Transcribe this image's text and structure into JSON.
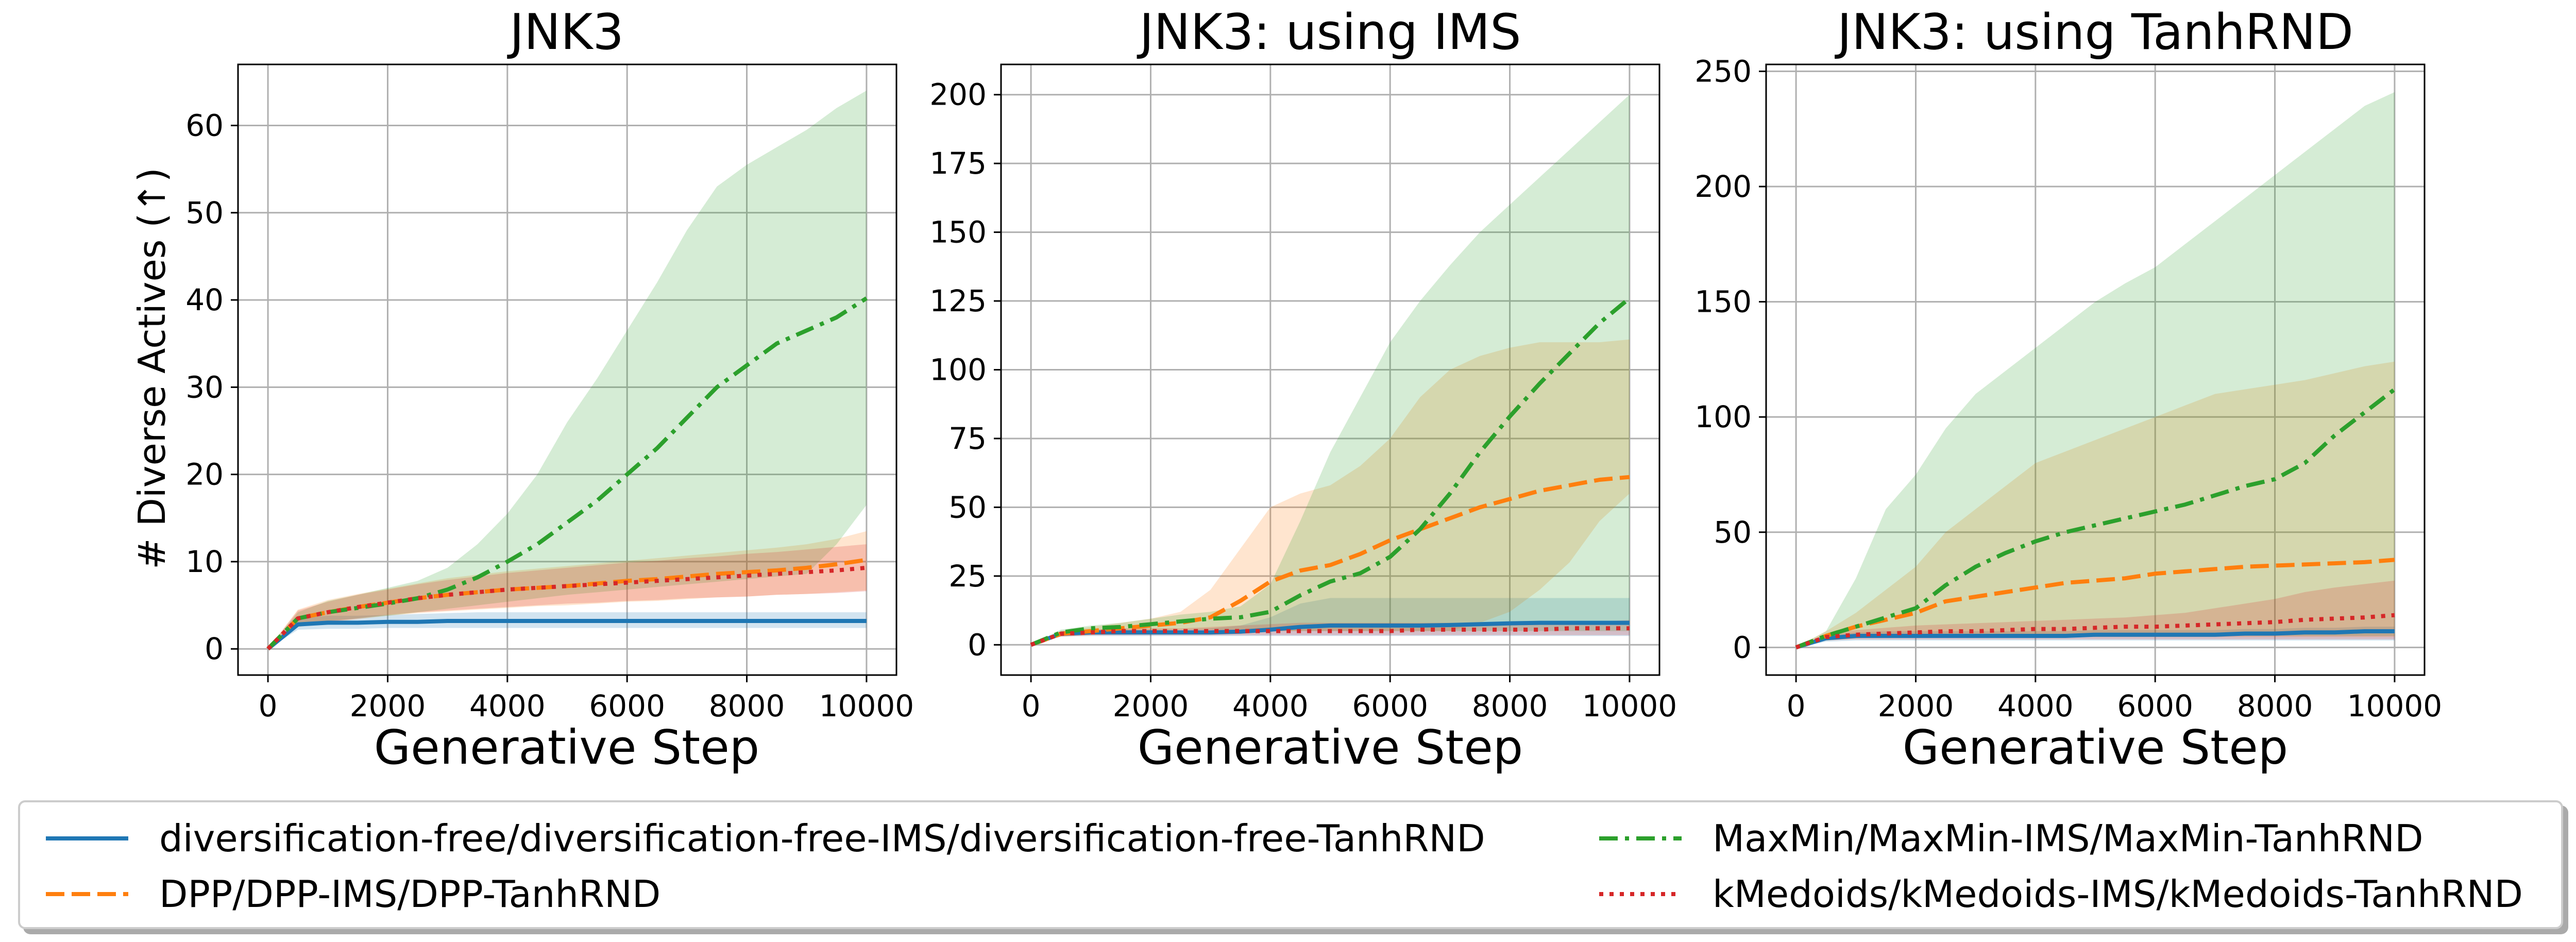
{
  "colors": {
    "blue": "#1f77b4",
    "orange": "#ff7f0e",
    "green": "#2ca02c",
    "red": "#d62728",
    "grid": "#b0b0b0"
  },
  "legend": {
    "items": [
      {
        "label": "diversification-free/diversification-free-IMS/diversification-free-TanhRND",
        "color": "#1f77b4",
        "dash": "solid"
      },
      {
        "label": "DPP/DPP-IMS/DPP-TanhRND",
        "color": "#ff7f0e",
        "dash": "dashed"
      },
      {
        "label": "MaxMin/MaxMin-IMS/MaxMin-TanhRND",
        "color": "#2ca02c",
        "dash": "dashdot"
      },
      {
        "label": "kMedoids/kMedoids-IMS/kMedoids-TanhRND",
        "color": "#d62728",
        "dash": "dotted"
      }
    ]
  },
  "chart_data": [
    {
      "type": "line",
      "title": "JNK3",
      "xlabel": "Generative Step",
      "ylabel": "# Diverse Actives (↑)",
      "xlim": [
        -500,
        10500
      ],
      "ylim": [
        -3,
        67
      ],
      "xticks": [
        0,
        2000,
        4000,
        6000,
        8000,
        10000
      ],
      "yticks": [
        0,
        10,
        20,
        30,
        40,
        50,
        60
      ],
      "grid": true,
      "x": [
        0,
        500,
        1000,
        1500,
        2000,
        2500,
        3000,
        3500,
        4000,
        4500,
        5000,
        5500,
        6000,
        6500,
        7000,
        7500,
        8000,
        8500,
        9000,
        9500,
        10000
      ],
      "series": [
        {
          "name": "diversification-free",
          "color": "#1f77b4",
          "dash": "solid",
          "values": [
            0,
            2.8,
            3,
            3,
            3.1,
            3.1,
            3.2,
            3.2,
            3.2,
            3.2,
            3.2,
            3.2,
            3.2,
            3.2,
            3.2,
            3.2,
            3.2,
            3.2,
            3.2,
            3.2,
            3.2
          ],
          "lower": [
            0,
            2.2,
            2.3,
            2.3,
            2.4,
            2.4,
            2.4,
            2.4,
            2.4,
            2.4,
            2.4,
            2.4,
            2.4,
            2.4,
            2.4,
            2.4,
            2.4,
            2.4,
            2.4,
            2.4,
            2.4
          ],
          "upper": [
            0,
            3.5,
            3.8,
            3.8,
            3.9,
            4,
            4.1,
            4.2,
            4.2,
            4.2,
            4.2,
            4.2,
            4.2,
            4.2,
            4.2,
            4.2,
            4.2,
            4.2,
            4.2,
            4.2,
            4.2
          ]
        },
        {
          "name": "DPP",
          "color": "#ff7f0e",
          "dash": "dashed",
          "values": [
            0,
            3.5,
            4.2,
            4.8,
            5.3,
            5.8,
            6.2,
            6.5,
            6.8,
            7,
            7.2,
            7.5,
            7.8,
            8,
            8.3,
            8.6,
            8.8,
            9,
            9.3,
            9.7,
            10.2
          ],
          "lower": [
            0,
            2.5,
            3,
            3.4,
            3.8,
            4.1,
            4.3,
            4.5,
            4.7,
            4.9,
            5,
            5.2,
            5.4,
            5.5,
            5.7,
            5.9,
            6,
            6.2,
            6.3,
            6.5,
            6.7
          ],
          "upper": [
            0,
            4.5,
            5.6,
            6.3,
            6.9,
            7.5,
            8.1,
            8.5,
            8.9,
            9.2,
            9.5,
            9.8,
            10.1,
            10.4,
            10.7,
            11,
            11.3,
            11.6,
            12,
            12.6,
            13.5
          ]
        },
        {
          "name": "MaxMin",
          "color": "#2ca02c",
          "dash": "dashdot",
          "values": [
            0,
            3.5,
            4.2,
            4.7,
            5.2,
            5.8,
            6.8,
            8.2,
            10,
            12,
            14.5,
            17,
            20,
            23,
            26.5,
            30,
            32.5,
            35,
            36.5,
            38,
            40.2
          ],
          "lower": [
            0,
            2.8,
            3.2,
            3.5,
            3.8,
            4.2,
            4.6,
            5,
            5.4,
            5.8,
            6.2,
            6.5,
            6.8,
            7.1,
            7.4,
            7.7,
            8,
            8.3,
            8.6,
            12,
            16.5
          ],
          "upper": [
            0,
            4.2,
            5.5,
            6.2,
            7,
            7.8,
            9.3,
            12,
            15.5,
            20,
            26,
            31,
            36.5,
            42,
            48,
            53,
            55.5,
            57.5,
            59.5,
            62,
            64
          ]
        },
        {
          "name": "kMedoids",
          "color": "#d62728",
          "dash": "dotted",
          "values": [
            0,
            3.5,
            4.2,
            4.8,
            5.3,
            5.8,
            6.2,
            6.5,
            6.8,
            7,
            7.2,
            7.4,
            7.6,
            7.8,
            8,
            8.2,
            8.4,
            8.6,
            8.8,
            9,
            9.3
          ],
          "lower": [
            0,
            2.6,
            3.1,
            3.5,
            3.9,
            4.2,
            4.4,
            4.6,
            4.8,
            5,
            5.2,
            5.3,
            5.5,
            5.6,
            5.8,
            5.9,
            6,
            6.2,
            6.3,
            6.4,
            6.6
          ],
          "upper": [
            0,
            4.4,
            5.4,
            6.2,
            6.8,
            7.4,
            7.9,
            8.3,
            8.7,
            9,
            9.3,
            9.6,
            9.9,
            10.1,
            10.4,
            10.6,
            10.9,
            11.1,
            11.4,
            11.7,
            12
          ]
        }
      ]
    },
    {
      "type": "line",
      "title": "JNK3: using IMS",
      "xlabel": "Generative Step",
      "ylabel": "",
      "xlim": [
        -500,
        10500
      ],
      "ylim": [
        -11,
        211
      ],
      "xticks": [
        0,
        2000,
        4000,
        6000,
        8000,
        10000
      ],
      "yticks": [
        0,
        25,
        50,
        75,
        100,
        125,
        150,
        175,
        200
      ],
      "grid": true,
      "x": [
        0,
        500,
        1000,
        1500,
        2000,
        2500,
        3000,
        3500,
        4000,
        4500,
        5000,
        5500,
        6000,
        6500,
        7000,
        7500,
        8000,
        8500,
        9000,
        9500,
        10000
      ],
      "series": [
        {
          "name": "diversification-free-IMS",
          "color": "#1f77b4",
          "dash": "solid",
          "values": [
            0,
            4,
            4.5,
            4.5,
            4.5,
            4.5,
            4.5,
            4.8,
            5.5,
            6.5,
            7,
            7,
            7,
            7,
            7.2,
            7.5,
            7.8,
            8,
            8,
            8,
            8
          ],
          "lower": [
            0,
            3,
            3.2,
            3.2,
            3.2,
            3.2,
            3.2,
            3.2,
            3.2,
            3.2,
            3.2,
            3.2,
            3.2,
            3.2,
            3.2,
            3.2,
            3.2,
            3.2,
            3.2,
            3.2,
            3.2
          ],
          "upper": [
            0,
            5,
            5.5,
            5.5,
            5.5,
            5.5,
            6,
            7,
            10,
            15,
            17,
            17,
            17,
            17,
            17,
            17,
            17,
            17,
            17,
            17,
            17
          ]
        },
        {
          "name": "DPP-IMS",
          "color": "#ff7f0e",
          "dash": "dashed",
          "values": [
            0,
            4,
            5,
            6,
            7,
            8,
            10,
            16,
            23,
            27,
            29,
            33,
            38,
            42,
            46,
            50,
            53,
            56,
            58,
            60,
            61
          ],
          "lower": [
            0,
            3,
            3.5,
            4,
            4.5,
            5,
            5,
            5,
            5,
            5,
            5,
            5,
            5,
            5,
            5,
            8,
            12,
            20,
            30,
            45,
            55
          ],
          "upper": [
            0,
            5,
            6.5,
            8,
            9.5,
            12,
            20,
            35,
            50,
            55,
            58,
            65,
            75,
            90,
            100,
            105,
            108,
            110,
            110,
            110,
            111
          ]
        },
        {
          "name": "MaxMin-IMS",
          "color": "#2ca02c",
          "dash": "dashdot",
          "values": [
            0,
            4.5,
            6,
            6.5,
            7.5,
            8.5,
            9.5,
            10,
            12,
            18,
            23,
            26,
            32,
            42,
            55,
            70,
            83,
            95,
            106,
            117,
            126
          ],
          "lower": [
            0,
            3.5,
            4,
            4.5,
            5,
            5.5,
            5.5,
            5,
            5,
            5,
            5,
            5,
            5,
            5,
            5,
            5,
            5,
            5,
            5,
            5,
            5
          ],
          "upper": [
            0,
            5.5,
            7,
            8,
            9.5,
            11,
            12,
            14,
            22,
            45,
            70,
            90,
            110,
            125,
            138,
            150,
            160,
            170,
            180,
            190,
            200
          ]
        },
        {
          "name": "kMedoids-IMS",
          "color": "#d62728",
          "dash": "dotted",
          "values": [
            0,
            4,
            4.5,
            5,
            5,
            5,
            5,
            5,
            5,
            5,
            5,
            5,
            5,
            5.5,
            5.5,
            5.5,
            5.5,
            5.5,
            6,
            6,
            6
          ],
          "lower": [
            0,
            3,
            3.5,
            3.5,
            3.5,
            3.5,
            3.5,
            3.5,
            3.5,
            3.5,
            3.5,
            3.5,
            3.5,
            3.5,
            3.5,
            3.5,
            3.5,
            3.5,
            3.5,
            3.5,
            3.5
          ],
          "upper": [
            0,
            5,
            5.5,
            6,
            6,
            6,
            6.5,
            7,
            7.5,
            8,
            8,
            8,
            8,
            8,
            8,
            8,
            8,
            8,
            8.5,
            8.5,
            9
          ]
        }
      ]
    },
    {
      "type": "line",
      "title": "JNK3: using TanhRND",
      "xlabel": "Generative Step",
      "ylabel": "",
      "xlim": [
        -500,
        10500
      ],
      "ylim": [
        -12,
        253
      ],
      "xticks": [
        0,
        2000,
        4000,
        6000,
        8000,
        10000
      ],
      "yticks": [
        0,
        50,
        100,
        150,
        200,
        250
      ],
      "grid": true,
      "x": [
        0,
        500,
        1000,
        1500,
        2000,
        2500,
        3000,
        3500,
        4000,
        4500,
        5000,
        5500,
        6000,
        6500,
        7000,
        7500,
        8000,
        8500,
        9000,
        9500,
        10000
      ],
      "series": [
        {
          "name": "diversification-free-TanhRND",
          "color": "#1f77b4",
          "dash": "solid",
          "values": [
            0,
            4,
            5,
            5,
            5,
            5,
            5,
            5,
            5,
            5,
            5.5,
            5.5,
            5.5,
            5.5,
            5.5,
            6,
            6,
            6.5,
            6.5,
            7,
            7
          ],
          "lower": [
            0,
            2.5,
            3,
            3,
            3,
            3,
            3,
            3,
            3,
            3,
            3,
            3,
            3,
            3,
            3,
            3,
            3,
            3,
            3,
            3,
            3
          ],
          "upper": [
            0,
            5,
            6.5,
            7,
            7,
            7,
            7,
            7,
            7,
            7,
            7.5,
            7.5,
            7.5,
            7.5,
            7.5,
            8,
            8,
            8.5,
            8.5,
            9,
            9
          ]
        },
        {
          "name": "DPP-TanhRND",
          "color": "#ff7f0e",
          "dash": "dashed",
          "values": [
            0,
            5,
            9,
            12,
            15,
            20,
            22,
            24,
            26,
            28,
            29,
            30,
            32,
            33,
            34,
            35,
            35.5,
            36,
            36.5,
            37,
            38
          ],
          "lower": [
            0,
            3,
            4,
            4.5,
            4.5,
            4.5,
            4.5,
            4.5,
            4.5,
            4.5,
            4.5,
            4.5,
            4.5,
            4.5,
            4.5,
            4.5,
            4.5,
            4.5,
            4.5,
            4.5,
            4.5
          ],
          "upper": [
            0,
            7,
            15,
            25,
            35,
            50,
            60,
            70,
            80,
            85,
            90,
            95,
            100,
            105,
            110,
            112,
            114,
            116,
            119,
            122,
            124
          ]
        },
        {
          "name": "MaxMin-TanhRND",
          "color": "#2ca02c",
          "dash": "dashdot",
          "values": [
            0,
            5,
            9,
            13,
            17,
            27,
            35,
            41,
            46,
            50,
            53,
            56,
            59,
            62,
            66,
            70,
            73,
            80,
            92,
            102,
            112
          ],
          "lower": [
            0,
            3,
            4,
            4.5,
            5,
            5,
            5,
            5,
            5,
            5,
            5,
            5,
            5,
            5,
            5,
            5,
            5,
            5,
            5,
            5,
            5
          ],
          "upper": [
            0,
            7,
            30,
            60,
            75,
            95,
            110,
            120,
            130,
            140,
            150,
            158,
            165,
            175,
            185,
            195,
            205,
            215,
            225,
            235,
            241
          ]
        },
        {
          "name": "kMedoids-TanhRND",
          "color": "#d62728",
          "dash": "dotted",
          "values": [
            0,
            4.5,
            5.5,
            6,
            6.5,
            7,
            7,
            7.5,
            8,
            8,
            8.5,
            9,
            9,
            9.5,
            10,
            10.5,
            11,
            12,
            12.5,
            13,
            14
          ],
          "lower": [
            0,
            3,
            3.5,
            3.5,
            3.5,
            3.5,
            3.5,
            3.5,
            3.5,
            3.5,
            3.5,
            3.5,
            3.5,
            3.5,
            3.5,
            3.5,
            3.5,
            3.5,
            3.5,
            3.5,
            3.5
          ],
          "upper": [
            0,
            6,
            7.5,
            8.5,
            9.5,
            10,
            10.5,
            11,
            11.5,
            12,
            12.5,
            13,
            14,
            15,
            17,
            19,
            21,
            24,
            26,
            27.5,
            29
          ]
        }
      ]
    }
  ]
}
